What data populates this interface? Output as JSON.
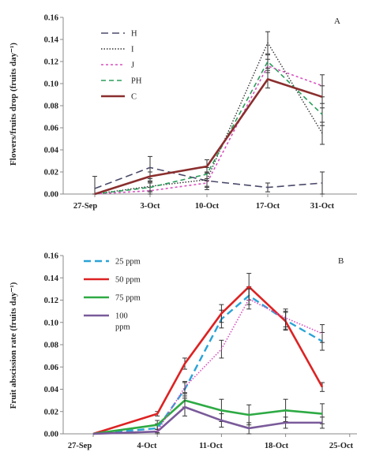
{
  "chart_data": [
    {
      "type": "line",
      "panel_label": "A",
      "ylabel": "Flowers/fruits drop (fruits day⁻¹)",
      "categories": [
        "27-Sep",
        "3-Oct",
        "10-Oct",
        "17-Oct",
        "31-Oct"
      ],
      "yticks": [
        "0.00",
        "0.02",
        "0.04",
        "0.06",
        "0.08",
        "0.10",
        "0.12",
        "0.14",
        "0.16"
      ],
      "ylim": [
        0,
        0.16
      ],
      "legend_position": "top-left",
      "series": [
        {
          "name": "H",
          "values": [
            0.005,
            0.024,
            0.012,
            0.006,
            0.01
          ],
          "errors": [
            0.011,
            0.01,
            0.008,
            0.004,
            0.01
          ],
          "color": "#4a4a6a",
          "dash": "9,5",
          "width": 1.6
        },
        {
          "name": "I",
          "values": [
            0.0,
            0.007,
            0.013,
            0.137,
            0.055
          ],
          "errors": [
            0.0,
            0.004,
            0.006,
            0.01,
            0.01
          ],
          "color": "#333333",
          "dash": "1.5,2",
          "width": 1.4
        },
        {
          "name": "J",
          "values": [
            0.0,
            0.003,
            0.01,
            0.116,
            0.098
          ],
          "errors": [
            0.0,
            0.003,
            0.004,
            0.006,
            0.01
          ],
          "color": "#d94fbf",
          "dash": "3,3",
          "width": 1.6
        },
        {
          "name": "PH",
          "values": [
            0.0,
            0.006,
            0.018,
            0.12,
            0.072
          ],
          "errors": [
            0.0,
            0.004,
            0.006,
            0.006,
            0.01
          ],
          "color": "#2a9d5c",
          "dash": "6,4",
          "width": 1.6
        },
        {
          "name": "C",
          "values": [
            0.0,
            0.016,
            0.025,
            0.104,
            0.088
          ],
          "errors": [
            0.0,
            0.004,
            0.006,
            0.008,
            0.01
          ],
          "color": "#8b2e2e",
          "dash": "",
          "width": 2.6
        }
      ]
    },
    {
      "type": "line",
      "panel_label": "B",
      "ylabel": "Fruit abscission rate (fruits day⁻¹)",
      "x_labels": [
        "27-Sep",
        "4-Oct",
        "11-Oct",
        "18-Oct",
        "25-Oct"
      ],
      "yticks": [
        "0.00",
        "0.02",
        "0.04",
        "0.06",
        "0.08",
        "0.10",
        "0.12",
        "0.14",
        "0.16"
      ],
      "ylim": [
        0,
        0.16
      ],
      "legend_position": "top-left",
      "series": [
        {
          "name": "25 ppm",
          "x": [
            0,
            7,
            10,
            14,
            17,
            21,
            25
          ],
          "values": [
            0.0,
            0.005,
            0.04,
            0.103,
            0.124,
            0.102,
            0.083
          ],
          "errors": [
            0.0,
            0.004,
            0.006,
            0.008,
            0.008,
            0.008,
            0.008
          ],
          "color": "#2aa3d6",
          "dash": "9,5",
          "width": 2.4
        },
        {
          "name": "50 ppm",
          "x": [
            0,
            7,
            10,
            14,
            17,
            21,
            25
          ],
          "values": [
            0.0,
            0.018,
            0.063,
            0.108,
            0.132,
            0.101,
            0.042
          ],
          "errors": [
            0.0,
            0.002,
            0.005,
            0.008,
            0.012,
            0.008,
            0.004
          ],
          "color": "#dd2222",
          "dash": "",
          "width": 2.6
        },
        {
          "name": "75 ppm",
          "x": [
            0,
            7,
            10,
            14,
            17,
            21,
            25
          ],
          "values": [
            0.0,
            0.008,
            0.03,
            0.021,
            0.017,
            0.021,
            0.018
          ],
          "errors": [
            0.0,
            0.004,
            0.006,
            0.01,
            0.009,
            0.01,
            0.009
          ],
          "color": "#2eaa44",
          "dash": "",
          "width": 2.6
        },
        {
          "name": "100 ppm",
          "x": [
            0,
            7,
            10,
            14,
            17,
            21,
            25
          ],
          "values": [
            0.0,
            0.002,
            0.024,
            0.012,
            0.005,
            0.01,
            0.01
          ],
          "errors": [
            0.0,
            0.002,
            0.008,
            0.006,
            0.005,
            0.005,
            0.005
          ],
          "color": "#7a5a9a",
          "dash": "",
          "width": 2.6
        },
        {
          "name": "",
          "x": [
            7,
            10,
            14,
            17,
            21,
            25
          ],
          "values": [
            0.002,
            0.042,
            0.076,
            0.121,
            0.104,
            0.09
          ],
          "errors": [
            0.0,
            0.005,
            0.008,
            0.009,
            0.008,
            0.008
          ],
          "color": "#d94fbf",
          "dash": "1.5,2",
          "width": 1.6
        }
      ]
    }
  ]
}
